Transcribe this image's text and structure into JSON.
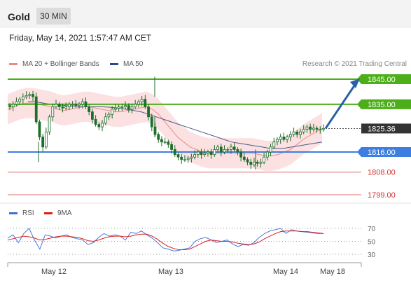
{
  "header": {
    "symbol": "Gold",
    "timeframe": "30 MIN"
  },
  "timestamp": "Friday, May 14, 2021 1:57:47 AM CET",
  "legend": {
    "bollinger": "MA 20 + Bollinger Bands",
    "ma50": "MA 50",
    "credit": "Research © 2021 Trading Central",
    "rsi": "RSI",
    "rsi_ma": "9MA"
  },
  "colors": {
    "candle": "#1f6e2c",
    "bollinger_line": "#f08a8a",
    "bollinger_fill": "#fbe1e1",
    "ma50": "#4a5a8a",
    "resistance": "#4caf1a",
    "support": "#3d7fe0",
    "minor_support": "#e06a6a",
    "current": "#333333",
    "arrow": "#2b5fa8"
  },
  "chart_data": [
    {
      "type": "candlestick",
      "x_labels": [
        "May 12",
        "May 13",
        "May 14",
        "May 18"
      ],
      "ylim": [
        1795,
        1851
      ],
      "levels": [
        {
          "value": 1845.0,
          "label": "1845.00",
          "kind": "resistance"
        },
        {
          "value": 1835.0,
          "label": "1835.00",
          "kind": "resistance"
        },
        {
          "value": 1825.36,
          "label": "1825.36",
          "kind": "current"
        },
        {
          "value": 1816.0,
          "label": "1816.00",
          "kind": "support"
        },
        {
          "value": 1808.0,
          "label": "1808.00",
          "kind": "minor_support"
        },
        {
          "value": 1799.0,
          "label": "1799.00",
          "kind": "minor_support"
        }
      ],
      "closes": [
        1834,
        1835,
        1836,
        1837,
        1838,
        1838.5,
        1839,
        1838,
        1828,
        1822,
        1818,
        1824,
        1830,
        1834,
        1835,
        1834,
        1833.5,
        1834,
        1835,
        1835,
        1834.5,
        1835,
        1836,
        1834,
        1832,
        1829,
        1827,
        1826,
        1827.5,
        1830,
        1831,
        1833,
        1833.5,
        1834,
        1834,
        1834.5,
        1833,
        1834,
        1835,
        1836,
        1837,
        1834,
        1830,
        1826,
        1823,
        1821,
        1820,
        1820,
        1819,
        1817,
        1815,
        1814,
        1813,
        1813,
        1813.5,
        1814,
        1815,
        1816,
        1815,
        1815.5,
        1816,
        1815,
        1817,
        1818,
        1816,
        1817,
        1817,
        1818,
        1817,
        1816,
        1814,
        1813,
        1812,
        1811,
        1812,
        1811.5,
        1812,
        1814,
        1816,
        1818,
        1820,
        1821,
        1822,
        1821,
        1822,
        1823,
        1824,
        1823,
        1824,
        1825,
        1826,
        1825,
        1825.5,
        1825,
        1825,
        1825.4
      ],
      "ma20": [
        1833,
        1834,
        1835,
        1835.5,
        1835.5,
        1835,
        1834.5,
        1834,
        1833,
        1832.5,
        1833,
        1833.5,
        1834,
        1834,
        1833.5,
        1833,
        1832.5,
        1832,
        1832,
        1832.5,
        1833,
        1833.5,
        1834,
        1833,
        1831,
        1828,
        1825,
        1822,
        1820,
        1818,
        1817,
        1816,
        1815.5,
        1815.5,
        1815.5,
        1815.5,
        1815.5,
        1815.5,
        1815.5,
        1815.5,
        1815,
        1814.5,
        1814.5,
        1815,
        1816,
        1817,
        1819,
        1821,
        1822.5,
        1824,
        1825.5
      ],
      "ma50": [
        1836,
        1836,
        1835.5,
        1835,
        1834.8,
        1834.5,
        1834.3,
        1834,
        1834,
        1834,
        1834,
        1833.8,
        1833.5,
        1833,
        1832.5,
        1832,
        1831,
        1830,
        1829,
        1828,
        1827,
        1826,
        1825,
        1824,
        1823,
        1822,
        1821,
        1820,
        1819.5,
        1819,
        1818.5,
        1818,
        1817.5,
        1817.5,
        1817.5,
        1818,
        1818.5,
        1819,
        1819.5,
        1820
      ]
    },
    {
      "type": "line",
      "name": "RSI",
      "yticks": [
        70,
        50,
        30
      ],
      "ylim": [
        20,
        80
      ],
      "rsi": [
        55,
        60,
        48,
        62,
        70,
        52,
        38,
        60,
        58,
        55,
        58,
        60,
        56,
        54,
        52,
        45,
        48,
        56,
        62,
        58,
        60,
        58,
        52,
        64,
        62,
        66,
        60,
        55,
        48,
        40,
        38,
        35,
        36,
        38,
        40,
        50,
        54,
        56,
        52,
        48,
        50,
        52,
        46,
        42,
        45,
        44,
        48,
        56,
        62,
        66,
        68,
        70,
        62,
        68,
        66,
        65,
        64,
        63,
        62,
        62
      ],
      "rsi_ma": [
        52,
        54,
        56,
        58,
        57,
        55,
        52,
        53,
        55,
        57,
        58,
        58,
        57,
        56,
        54,
        51,
        50,
        52,
        55,
        57,
        58,
        58,
        57,
        58,
        60,
        61,
        61,
        58,
        53,
        47,
        42,
        39,
        37,
        37,
        38,
        42,
        46,
        50,
        52,
        51,
        50,
        50,
        49,
        47,
        46,
        45,
        46,
        49,
        54,
        58,
        62,
        65,
        66,
        66,
        66,
        65,
        65,
        64,
        63,
        62
      ]
    }
  ]
}
